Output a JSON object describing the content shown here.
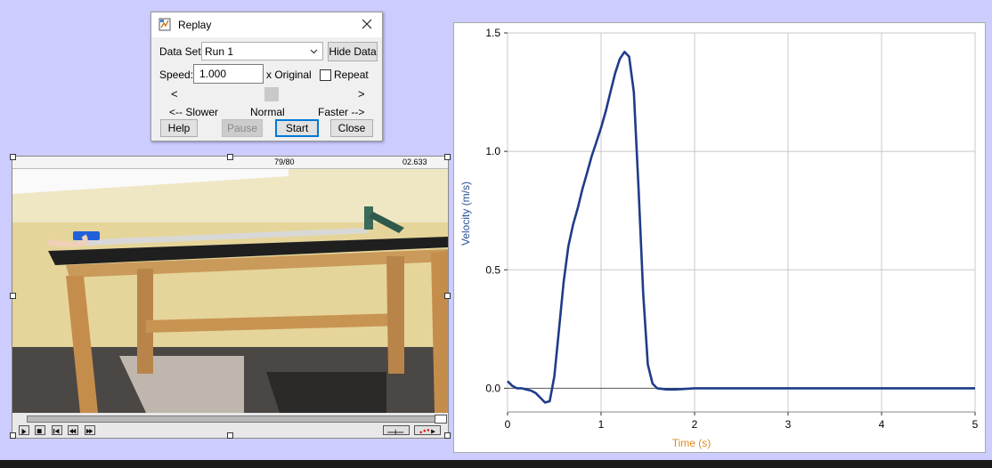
{
  "dialog": {
    "title": "Replay",
    "dataset_label": "Data Set:",
    "dataset_value": "Run 1",
    "hide_data_label": "Hide Data",
    "speed_label": "Speed:",
    "speed_value": "1.000",
    "speed_unit": "x Original",
    "repeat_label": "Repeat",
    "repeat_checked": false,
    "slider_left": "<",
    "slider_right": ">",
    "slower_label": "<-- Slower",
    "normal_label": "Normal",
    "faster_label": "Faster -->",
    "buttons": {
      "help": "Help",
      "pause": "Pause",
      "start": "Start",
      "close": "Close"
    }
  },
  "video": {
    "frame_counter": "79/80",
    "time_readout": "02.633"
  },
  "colors": {
    "desktop": "#ccccff",
    "series": "#1f3c88",
    "time_label": "#e08a1e",
    "velocity_label": "#2a4f9a"
  },
  "chart_data": {
    "type": "line",
    "xlabel": "Time (s)",
    "ylabel": "Velocity (m/s)",
    "xlim": [
      0,
      5
    ],
    "ylim": [
      -0.1,
      1.5
    ],
    "x_ticks": [
      "0",
      "1",
      "2",
      "3",
      "4",
      "5"
    ],
    "y_ticks": [
      "0.0",
      "0.5",
      "1.0",
      "1.5"
    ],
    "grid": true,
    "series": [
      {
        "x": [
          0,
          0.05,
          0.1,
          0.15,
          0.2,
          0.25,
          0.3,
          0.35,
          0.4,
          0.45,
          0.5,
          0.55,
          0.6,
          0.65,
          0.7,
          0.75,
          0.8,
          0.85,
          0.9,
          0.95,
          1.0,
          1.05,
          1.1,
          1.15,
          1.2,
          1.25,
          1.3,
          1.35,
          1.4,
          1.45,
          1.5,
          1.55,
          1.6,
          1.7,
          1.8,
          2.0,
          2.5,
          3.0,
          3.5,
          4.0,
          4.5,
          5.0
        ],
        "y": [
          0.03,
          0.01,
          0.0,
          0.0,
          -0.005,
          -0.01,
          -0.02,
          -0.04,
          -0.06,
          -0.055,
          0.05,
          0.25,
          0.45,
          0.6,
          0.69,
          0.76,
          0.84,
          0.91,
          0.98,
          1.04,
          1.1,
          1.17,
          1.25,
          1.33,
          1.39,
          1.42,
          1.4,
          1.25,
          0.85,
          0.4,
          0.1,
          0.02,
          0.0,
          -0.005,
          -0.005,
          0.0,
          0.0,
          0.0,
          0.0,
          0.0,
          0.0,
          0.0
        ]
      }
    ]
  }
}
